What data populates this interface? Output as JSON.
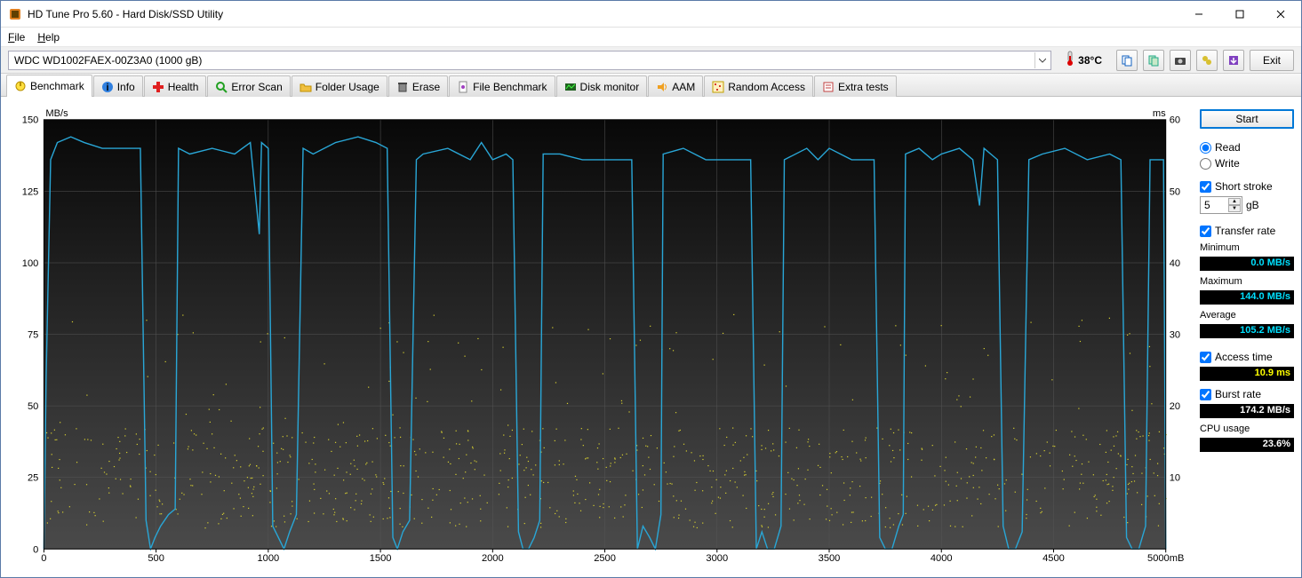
{
  "window": {
    "title": "HD Tune Pro 5.60 - Hard Disk/SSD Utility"
  },
  "menu": {
    "file": "File",
    "help": "Help"
  },
  "toolbar": {
    "disk": "WDC WD1002FAEX-00Z3A0 (1000 gB)",
    "temperature": "38°C",
    "exit_label": "Exit"
  },
  "tabs": {
    "benchmark": "Benchmark",
    "info": "Info",
    "health": "Health",
    "error_scan": "Error Scan",
    "folder_usage": "Folder Usage",
    "erase": "Erase",
    "file_benchmark": "File Benchmark",
    "disk_monitor": "Disk monitor",
    "aam": "AAM",
    "random_access": "Random Access",
    "extra_tests": "Extra tests"
  },
  "side": {
    "start": "Start",
    "read": "Read",
    "write": "Write",
    "short_stroke": "Short stroke",
    "short_stroke_val": "5",
    "short_stroke_unit": "gB",
    "transfer_rate": "Transfer rate",
    "minimum_label": "Minimum",
    "minimum_val": "0.0 MB/s",
    "maximum_label": "Maximum",
    "maximum_val": "144.0 MB/s",
    "average_label": "Average",
    "average_val": "105.2 MB/s",
    "access_time": "Access time",
    "access_time_val": "10.9 ms",
    "burst_rate": "Burst rate",
    "burst_rate_val": "174.2 MB/s",
    "cpu_usage_label": "CPU usage",
    "cpu_usage_val": "23.6%"
  },
  "chart": {
    "y_left_label": "MB/s",
    "y_right_label": "ms",
    "x_unit": "mB",
    "y_left_ticks": [
      0,
      25,
      50,
      75,
      100,
      125,
      150
    ],
    "y_right_ticks": [
      10,
      20,
      30,
      40,
      50,
      60
    ],
    "x_ticks": [
      0,
      500,
      1000,
      1500,
      2000,
      2500,
      3000,
      3500,
      4000,
      4500,
      5000
    ],
    "xlim": [
      0,
      5000
    ],
    "ylim_left": [
      0,
      150
    ],
    "ylim_right": [
      0,
      60
    ],
    "line_color": "#29a6d6",
    "dot_color": "#d8d030",
    "bg_top": "#080808",
    "bg_bottom": "#4a4a4a",
    "grid_color": "#555555",
    "transfer_curve": [
      [
        0,
        0
      ],
      [
        10,
        60
      ],
      [
        30,
        136
      ],
      [
        60,
        142
      ],
      [
        120,
        144
      ],
      [
        180,
        142
      ],
      [
        260,
        140
      ],
      [
        350,
        140
      ],
      [
        430,
        140
      ],
      [
        455,
        10
      ],
      [
        475,
        0
      ],
      [
        495,
        4
      ],
      [
        520,
        8
      ],
      [
        555,
        12
      ],
      [
        585,
        14
      ],
      [
        600,
        140
      ],
      [
        650,
        138
      ],
      [
        750,
        140
      ],
      [
        850,
        138
      ],
      [
        920,
        142
      ],
      [
        960,
        110
      ],
      [
        970,
        142
      ],
      [
        1000,
        140
      ],
      [
        1020,
        8
      ],
      [
        1045,
        4
      ],
      [
        1070,
        0
      ],
      [
        1095,
        6
      ],
      [
        1125,
        12
      ],
      [
        1155,
        140
      ],
      [
        1200,
        138
      ],
      [
        1300,
        142
      ],
      [
        1400,
        144
      ],
      [
        1480,
        142
      ],
      [
        1530,
        140
      ],
      [
        1555,
        4
      ],
      [
        1575,
        0
      ],
      [
        1600,
        6
      ],
      [
        1630,
        10
      ],
      [
        1660,
        136
      ],
      [
        1690,
        138
      ],
      [
        1800,
        140
      ],
      [
        1900,
        136
      ],
      [
        1950,
        142
      ],
      [
        2000,
        136
      ],
      [
        2060,
        138
      ],
      [
        2090,
        136
      ],
      [
        2115,
        6
      ],
      [
        2135,
        0
      ],
      [
        2160,
        0
      ],
      [
        2185,
        4
      ],
      [
        2210,
        10
      ],
      [
        2225,
        138
      ],
      [
        2300,
        138
      ],
      [
        2400,
        136
      ],
      [
        2500,
        136
      ],
      [
        2560,
        136
      ],
      [
        2620,
        136
      ],
      [
        2645,
        0
      ],
      [
        2670,
        8
      ],
      [
        2700,
        4
      ],
      [
        2725,
        0
      ],
      [
        2750,
        12
      ],
      [
        2760,
        138
      ],
      [
        2850,
        140
      ],
      [
        2950,
        136
      ],
      [
        3050,
        136
      ],
      [
        3150,
        136
      ],
      [
        3175,
        0
      ],
      [
        3200,
        6
      ],
      [
        3225,
        0
      ],
      [
        3255,
        0
      ],
      [
        3285,
        8
      ],
      [
        3300,
        136
      ],
      [
        3400,
        140
      ],
      [
        3450,
        136
      ],
      [
        3500,
        140
      ],
      [
        3600,
        136
      ],
      [
        3700,
        136
      ],
      [
        3725,
        4
      ],
      [
        3750,
        0
      ],
      [
        3780,
        0
      ],
      [
        3810,
        8
      ],
      [
        3830,
        12
      ],
      [
        3840,
        138
      ],
      [
        3900,
        140
      ],
      [
        3960,
        136
      ],
      [
        4000,
        138
      ],
      [
        4080,
        140
      ],
      [
        4140,
        136
      ],
      [
        4170,
        120
      ],
      [
        4190,
        140
      ],
      [
        4250,
        136
      ],
      [
        4275,
        8
      ],
      [
        4300,
        0
      ],
      [
        4330,
        0
      ],
      [
        4360,
        6
      ],
      [
        4390,
        136
      ],
      [
        4450,
        138
      ],
      [
        4550,
        140
      ],
      [
        4650,
        136
      ],
      [
        4750,
        138
      ],
      [
        4800,
        136
      ],
      [
        4825,
        4
      ],
      [
        4850,
        0
      ],
      [
        4880,
        0
      ],
      [
        4910,
        8
      ],
      [
        4930,
        136
      ],
      [
        4960,
        136
      ],
      [
        4990,
        136
      ],
      [
        5000,
        0
      ]
    ],
    "access_points_seed": 12345,
    "access_points_count": 900
  }
}
